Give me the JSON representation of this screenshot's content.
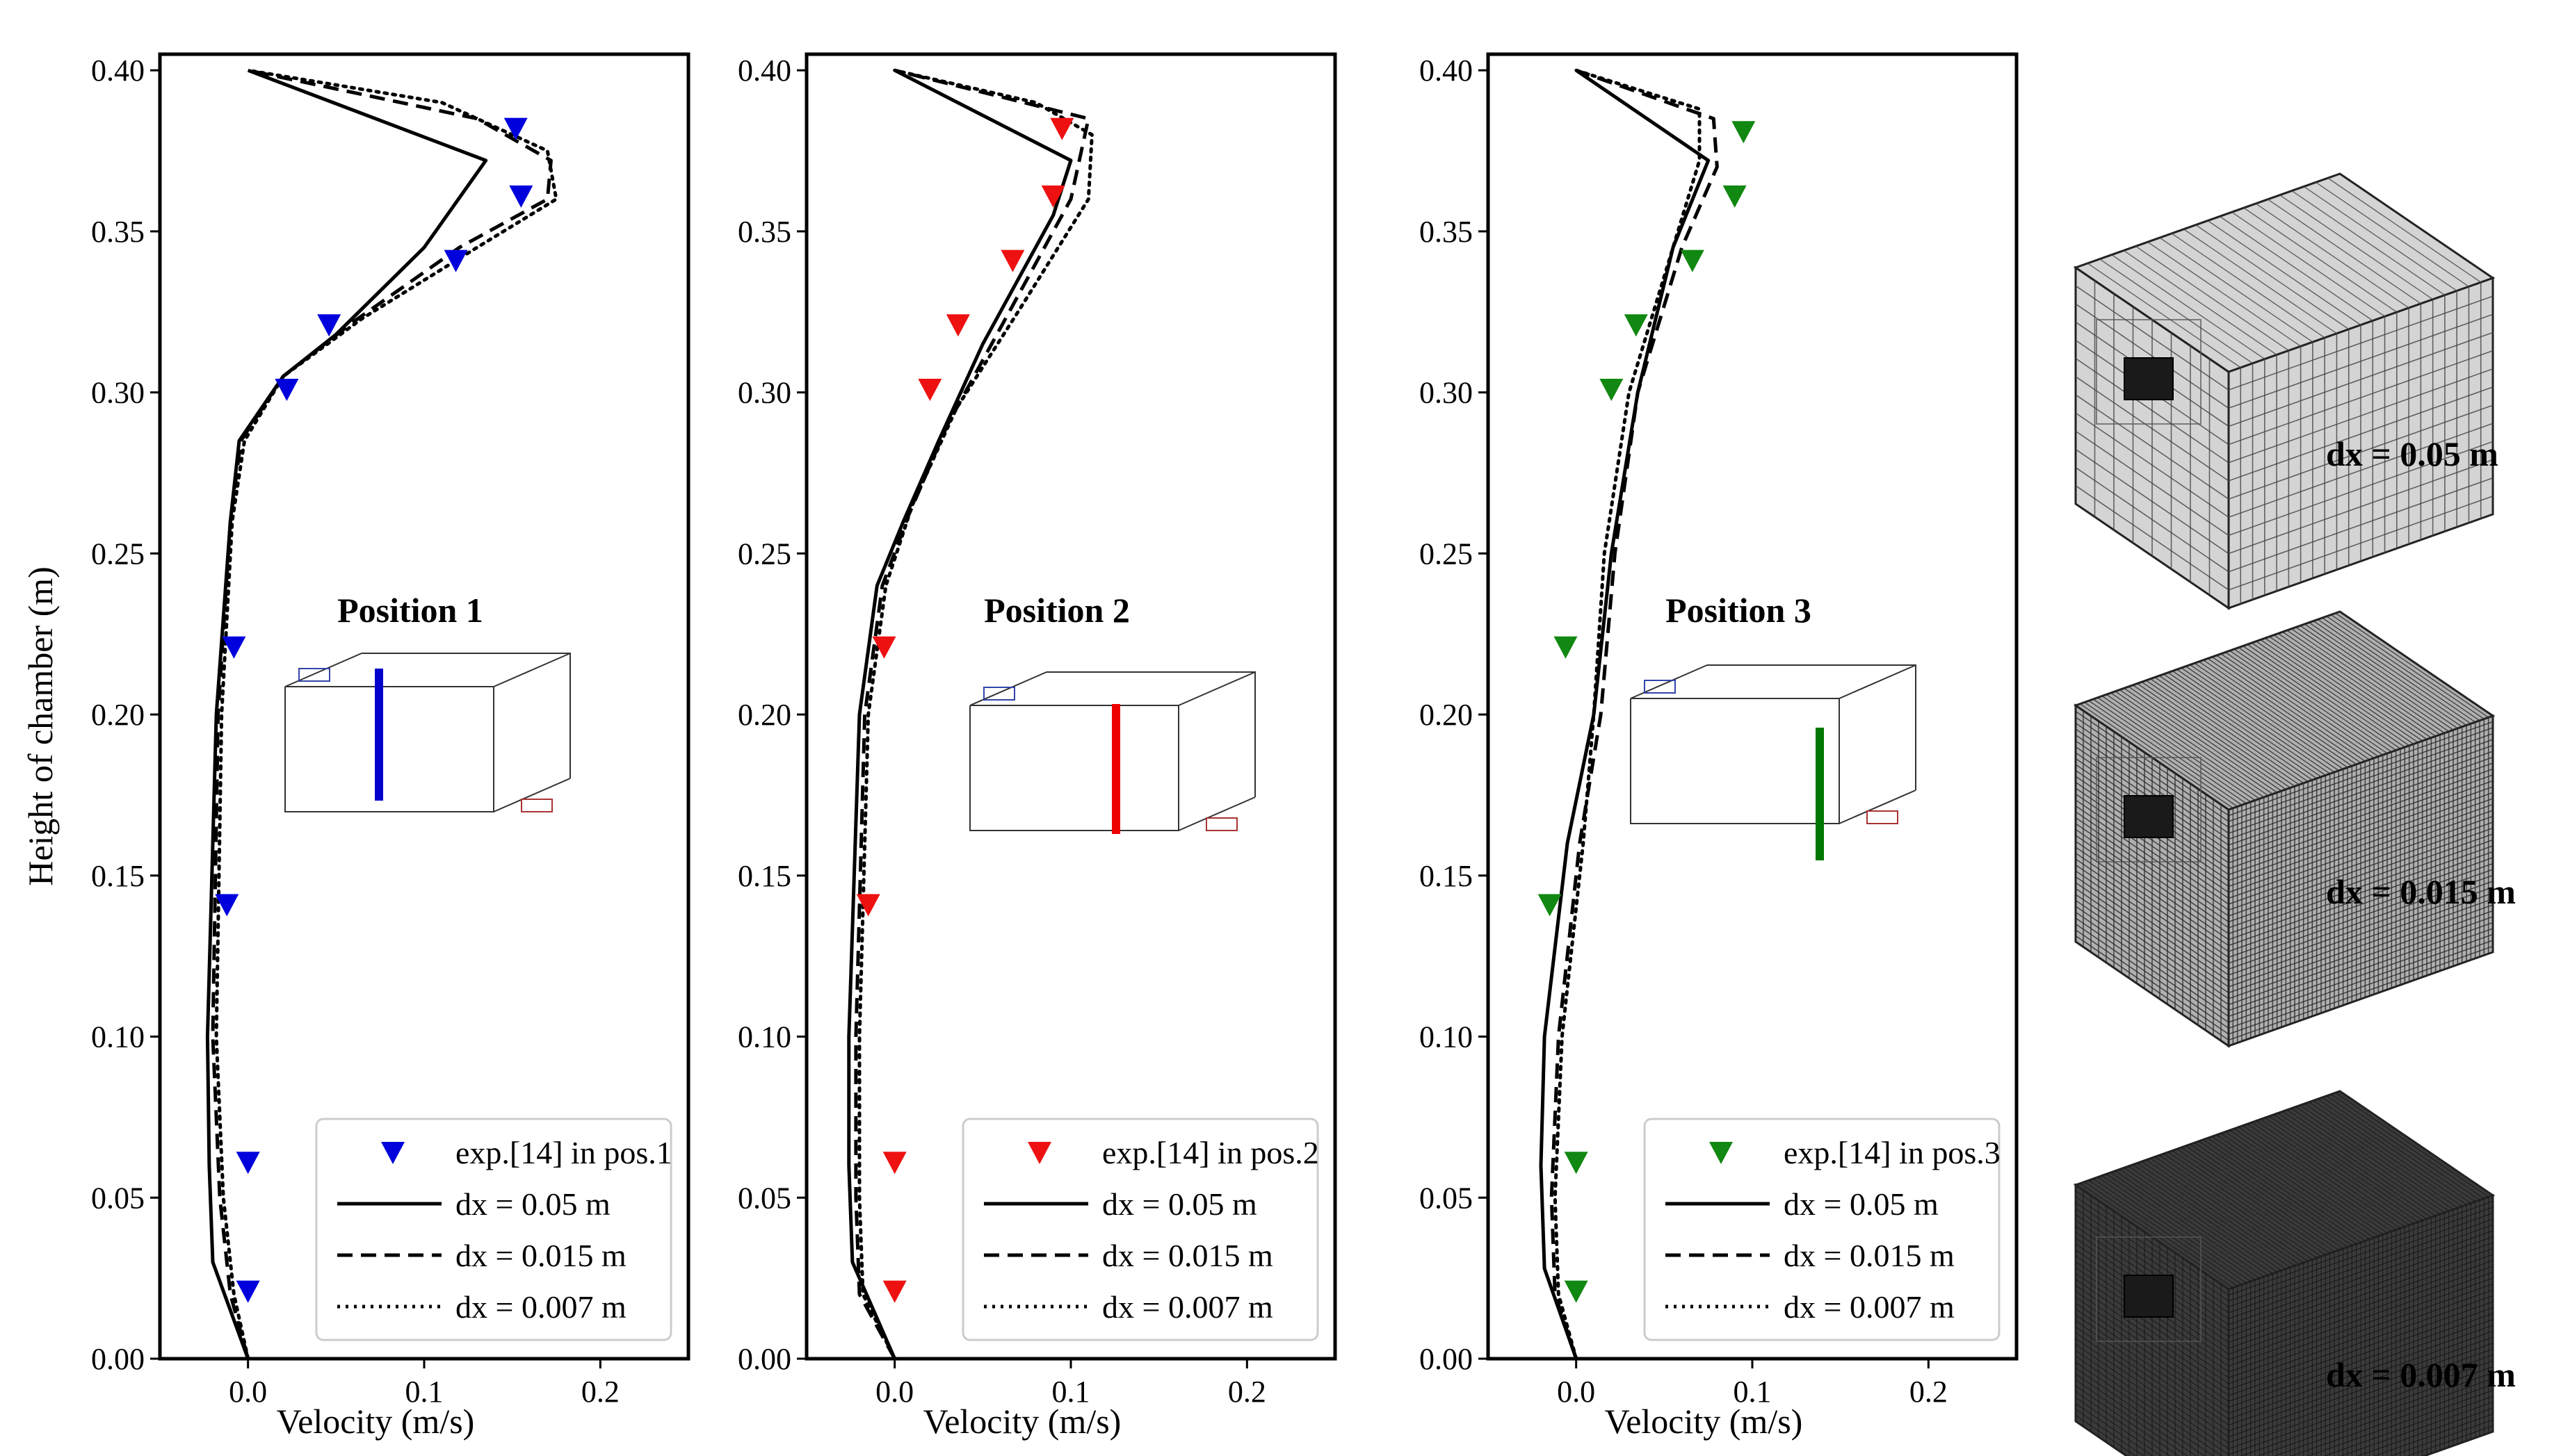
{
  "chart_data": [
    {
      "type": "line",
      "panel": "Position 1",
      "title": "Position 1",
      "xlabel": "Velocity (m/s)",
      "ylabel": "Height of chamber (m)",
      "xlim": [
        -0.05,
        0.25
      ],
      "ylim": [
        0.0,
        0.405
      ],
      "xticks": [
        0.0,
        0.1,
        0.2
      ],
      "xtick_labels": [
        "0.0",
        "0.1",
        "0.2"
      ],
      "yticks": [
        0.0,
        0.05,
        0.1,
        0.15,
        0.2,
        0.25,
        0.3,
        0.35,
        0.4
      ],
      "ytick_labels": [
        "0.00",
        "0.05",
        "0.10",
        "0.15",
        "0.20",
        "0.25",
        "0.30",
        "0.35",
        "0.40"
      ],
      "marker_color": "#0000dd",
      "inset_bar_color": "#0000cc",
      "legend_location": "lower-right",
      "experimental": {
        "name": "exp.[14] in pos.1",
        "points": [
          [
            0.152,
            0.382
          ],
          [
            0.155,
            0.361
          ],
          [
            0.118,
            0.341
          ],
          [
            0.046,
            0.321
          ],
          [
            0.022,
            0.301
          ],
          [
            -0.008,
            0.221
          ],
          [
            -0.012,
            0.141
          ],
          [
            0.0,
            0.061
          ],
          [
            0.0,
            0.021
          ]
        ]
      },
      "series": [
        {
          "name": "dx = 0.05 m",
          "style": "solid",
          "points": [
            [
              0.0,
              0.0
            ],
            [
              -0.02,
              0.03
            ],
            [
              -0.022,
              0.06
            ],
            [
              -0.023,
              0.1
            ],
            [
              -0.018,
              0.2
            ],
            [
              -0.01,
              0.26
            ],
            [
              -0.005,
              0.285
            ],
            [
              0.02,
              0.305
            ],
            [
              0.05,
              0.318
            ],
            [
              0.1,
              0.345
            ],
            [
              0.135,
              0.372
            ],
            [
              0.0,
              0.4
            ]
          ]
        },
        {
          "name": "dx = 0.015 m",
          "style": "dashed",
          "points": [
            [
              0.0,
              0.0
            ],
            [
              -0.01,
              0.02
            ],
            [
              -0.016,
              0.05
            ],
            [
              -0.02,
              0.1
            ],
            [
              -0.017,
              0.2
            ],
            [
              -0.01,
              0.26
            ],
            [
              -0.004,
              0.285
            ],
            [
              0.02,
              0.305
            ],
            [
              0.06,
              0.322
            ],
            [
              0.12,
              0.345
            ],
            [
              0.17,
              0.36
            ],
            [
              0.172,
              0.372
            ],
            [
              0.13,
              0.385
            ],
            [
              0.0,
              0.4
            ]
          ]
        },
        {
          "name": "dx = 0.007 m",
          "style": "dotted",
          "points": [
            [
              0.0,
              0.0
            ],
            [
              -0.008,
              0.02
            ],
            [
              -0.014,
              0.05
            ],
            [
              -0.018,
              0.1
            ],
            [
              -0.015,
              0.2
            ],
            [
              -0.009,
              0.26
            ],
            [
              -0.002,
              0.285
            ],
            [
              0.02,
              0.305
            ],
            [
              0.065,
              0.323
            ],
            [
              0.13,
              0.345
            ],
            [
              0.175,
              0.36
            ],
            [
              0.17,
              0.375
            ],
            [
              0.11,
              0.39
            ],
            [
              0.0,
              0.4
            ]
          ]
        }
      ]
    },
    {
      "type": "line",
      "panel": "Position 2",
      "title": "Position 2",
      "xlabel": "Velocity (m/s)",
      "ylabel": "",
      "xlim": [
        -0.05,
        0.25
      ],
      "ylim": [
        0.0,
        0.405
      ],
      "xticks": [
        0.0,
        0.1,
        0.2
      ],
      "xtick_labels": [
        "0.0",
        "0.1",
        "0.2"
      ],
      "yticks": [
        0.0,
        0.05,
        0.1,
        0.15,
        0.2,
        0.25,
        0.3,
        0.35,
        0.4
      ],
      "ytick_labels": [
        "0.00",
        "0.05",
        "0.10",
        "0.15",
        "0.20",
        "0.25",
        "0.30",
        "0.35",
        "0.40"
      ],
      "marker_color": "#ee1111",
      "inset_bar_color": "#ee0000",
      "legend_location": "lower-right",
      "experimental": {
        "name": "exp.[14] in pos.2",
        "points": [
          [
            0.095,
            0.382
          ],
          [
            0.09,
            0.361
          ],
          [
            0.067,
            0.341
          ],
          [
            0.036,
            0.321
          ],
          [
            0.02,
            0.301
          ],
          [
            -0.006,
            0.221
          ],
          [
            -0.015,
            0.141
          ],
          [
            0.0,
            0.061
          ],
          [
            0.0,
            0.021
          ]
        ]
      },
      "series": [
        {
          "name": "dx = 0.05 m",
          "style": "solid",
          "points": [
            [
              0.0,
              0.0
            ],
            [
              -0.024,
              0.03
            ],
            [
              -0.026,
              0.06
            ],
            [
              -0.026,
              0.1
            ],
            [
              -0.02,
              0.2
            ],
            [
              -0.01,
              0.24
            ],
            [
              0.005,
              0.26
            ],
            [
              0.025,
              0.285
            ],
            [
              0.05,
              0.315
            ],
            [
              0.09,
              0.355
            ],
            [
              0.1,
              0.372
            ],
            [
              0.0,
              0.4
            ]
          ]
        },
        {
          "name": "dx = 0.015 m",
          "style": "dashed",
          "points": [
            [
              0.0,
              0.0
            ],
            [
              -0.02,
              0.02
            ],
            [
              -0.022,
              0.05
            ],
            [
              -0.022,
              0.1
            ],
            [
              -0.017,
              0.2
            ],
            [
              -0.007,
              0.24
            ],
            [
              0.008,
              0.262
            ],
            [
              0.03,
              0.29
            ],
            [
              0.06,
              0.32
            ],
            [
              0.1,
              0.36
            ],
            [
              0.11,
              0.385
            ],
            [
              0.0,
              0.4
            ]
          ]
        },
        {
          "name": "dx = 0.007 m",
          "style": "dotted",
          "points": [
            [
              0.0,
              0.0
            ],
            [
              -0.018,
              0.02
            ],
            [
              -0.02,
              0.05
            ],
            [
              -0.02,
              0.1
            ],
            [
              -0.015,
              0.2
            ],
            [
              -0.005,
              0.24
            ],
            [
              0.01,
              0.265
            ],
            [
              0.035,
              0.295
            ],
            [
              0.07,
              0.325
            ],
            [
              0.11,
              0.36
            ],
            [
              0.112,
              0.38
            ],
            [
              0.08,
              0.39
            ],
            [
              0.0,
              0.4
            ]
          ]
        }
      ]
    },
    {
      "type": "line",
      "panel": "Position 3",
      "title": "Position 3",
      "xlabel": "Velocity (m/s)",
      "ylabel": "",
      "xlim": [
        -0.05,
        0.25
      ],
      "ylim": [
        0.0,
        0.405
      ],
      "xticks": [
        0.0,
        0.1,
        0.2
      ],
      "xtick_labels": [
        "0.0",
        "0.1",
        "0.2"
      ],
      "yticks": [
        0.0,
        0.05,
        0.1,
        0.15,
        0.2,
        0.25,
        0.3,
        0.35,
        0.4
      ],
      "ytick_labels": [
        "0.00",
        "0.05",
        "0.10",
        "0.15",
        "0.20",
        "0.25",
        "0.30",
        "0.35",
        "0.40"
      ],
      "marker_color": "#118811",
      "inset_bar_color": "#007700",
      "legend_location": "lower-right",
      "experimental": {
        "name": "exp.[14] in pos.3",
        "points": [
          [
            0.095,
            0.381
          ],
          [
            0.09,
            0.361
          ],
          [
            0.066,
            0.341
          ],
          [
            0.034,
            0.321
          ],
          [
            0.02,
            0.301
          ],
          [
            -0.006,
            0.221
          ],
          [
            -0.015,
            0.141
          ],
          [
            0.0,
            0.061
          ],
          [
            0.0,
            0.021
          ]
        ]
      },
      "series": [
        {
          "name": "dx = 0.05 m",
          "style": "solid",
          "points": [
            [
              0.0,
              0.0
            ],
            [
              -0.018,
              0.028
            ],
            [
              -0.02,
              0.06
            ],
            [
              -0.018,
              0.1
            ],
            [
              -0.005,
              0.16
            ],
            [
              0.01,
              0.2
            ],
            [
              0.02,
              0.25
            ],
            [
              0.035,
              0.3
            ],
            [
              0.055,
              0.345
            ],
            [
              0.075,
              0.372
            ],
            [
              0.0,
              0.4
            ]
          ]
        },
        {
          "name": "dx = 0.015 m",
          "style": "dashed",
          "points": [
            [
              0.0,
              0.0
            ],
            [
              -0.012,
              0.02
            ],
            [
              -0.014,
              0.05
            ],
            [
              -0.01,
              0.1
            ],
            [
              0.002,
              0.16
            ],
            [
              0.014,
              0.2
            ],
            [
              0.022,
              0.25
            ],
            [
              0.035,
              0.3
            ],
            [
              0.06,
              0.345
            ],
            [
              0.08,
              0.37
            ],
            [
              0.078,
              0.385
            ],
            [
              0.0,
              0.4
            ]
          ]
        },
        {
          "name": "dx = 0.007 m",
          "style": "dotted",
          "points": [
            [
              0.0,
              0.0
            ],
            [
              -0.01,
              0.02
            ],
            [
              -0.012,
              0.05
            ],
            [
              -0.008,
              0.1
            ],
            [
              0.004,
              0.16
            ],
            [
              0.01,
              0.2
            ],
            [
              0.016,
              0.25
            ],
            [
              0.03,
              0.3
            ],
            [
              0.055,
              0.345
            ],
            [
              0.07,
              0.372
            ],
            [
              0.07,
              0.388
            ],
            [
              0.0,
              0.4
            ]
          ]
        }
      ]
    }
  ],
  "mesh_panels": [
    {
      "label": "dx = 0.05 m",
      "grid_divisions": 22,
      "face_color": "#d4d4d4",
      "line_color": "#444444"
    },
    {
      "label": "dx = 0.015 m",
      "grid_divisions": 70,
      "face_color": "#b0b0b0",
      "line_color": "#2a2a2a"
    },
    {
      "label": "dx = 0.007 m",
      "grid_divisions": 150,
      "face_color": "#3a3a3a",
      "line_color": "#111111"
    }
  ]
}
